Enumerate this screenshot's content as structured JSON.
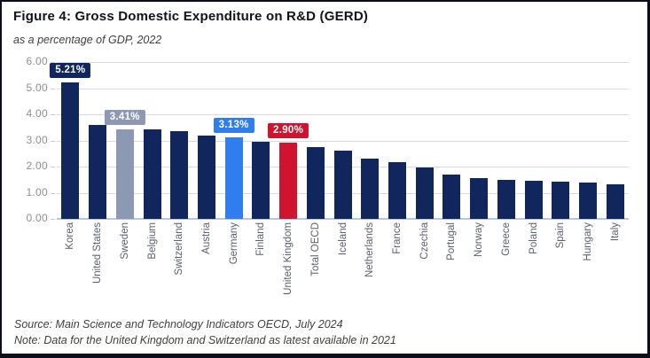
{
  "figure": {
    "title": "Figure 4: Gross Domestic Expenditure on R&D (GERD)",
    "subtitle": "as a percentage of GDP, 2022",
    "source": "Source: Main Science and Technology Indicators OECD, July 2024",
    "note": "Note: Data for the United Kingdom and Switzerland as latest available in 2021"
  },
  "colors": {
    "bar_default": "#12265E",
    "gridline": "#DADADA",
    "axis_line": "#B7C6E6",
    "ytick_text": "#8E8E8E",
    "xlabel_text": "#5A6069",
    "frame_border": "#0A0D1A"
  },
  "chart_data": {
    "type": "bar",
    "title": "Figure 4: Gross Domestic Expenditure on R&D (GERD)",
    "subtitle": "as a percentage of GDP, 2022",
    "xlabel": "",
    "ylabel": "",
    "ylim": [
      0,
      6
    ],
    "yticks": [
      "0.00",
      "1.00",
      "2.00",
      "3.00",
      "4.00",
      "5.00",
      "6.00"
    ],
    "grid": true,
    "legend_position": "none",
    "categories": [
      "Korea",
      "United States",
      "Sweden",
      "Belgium",
      "Switzerland",
      "Austria",
      "Germany",
      "Finland",
      "United Kingdom",
      "Total OECD",
      "Iceland",
      "Netherlands",
      "France",
      "Czechia",
      "Portugal",
      "Norway",
      "Greece",
      "Poland",
      "Spain",
      "Hungary",
      "Italy"
    ],
    "values": [
      5.21,
      3.59,
      3.41,
      3.41,
      3.34,
      3.2,
      3.13,
      2.96,
      2.9,
      2.73,
      2.6,
      2.3,
      2.18,
      1.96,
      1.7,
      1.56,
      1.49,
      1.45,
      1.44,
      1.39,
      1.32
    ],
    "bar_colors": {
      "Sweden": "#8D99B2",
      "Germany": "#2F7DEE",
      "United Kingdom": "#D0142F"
    },
    "data_labels": [
      {
        "category": "Korea",
        "text": "5.21%",
        "bg": "#12265E"
      },
      {
        "category": "Sweden",
        "text": "3.41%",
        "bg": "#8D99B2"
      },
      {
        "category": "Germany",
        "text": "3.13%",
        "bg": "#2F7DEE"
      },
      {
        "category": "United Kingdom",
        "text": "2.90%",
        "bg": "#D0142F"
      }
    ]
  }
}
